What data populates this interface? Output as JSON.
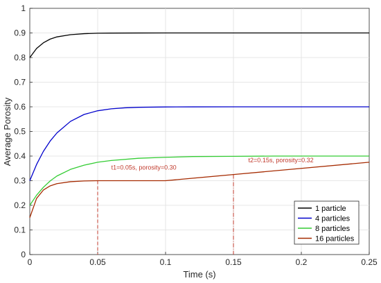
{
  "chart_data": {
    "type": "line",
    "xlabel": "Time (s)",
    "ylabel": "Average Porosity",
    "xlim": [
      0,
      0.25
    ],
    "ylim": [
      0,
      1
    ],
    "xticks": [
      "0",
      "0.05",
      "0.1",
      "0.15",
      "0.2",
      "0.25"
    ],
    "xtick_values": [
      0,
      0.05,
      0.1,
      0.15,
      0.2,
      0.25
    ],
    "yticks": [
      "0",
      "0.1",
      "0.2",
      "0.3",
      "0.4",
      "0.5",
      "0.6",
      "0.7",
      "0.8",
      "0.9",
      "1"
    ],
    "ytick_values": [
      0,
      0.1,
      0.2,
      0.3,
      0.4,
      0.5,
      0.6,
      0.7,
      0.8,
      0.9,
      1
    ],
    "grid": true,
    "legend_position": "bottom-right",
    "series": [
      {
        "name": "1 particle",
        "color": "#000000",
        "x": [
          0,
          0.005,
          0.01,
          0.015,
          0.02,
          0.03,
          0.04,
          0.05,
          0.06,
          0.08,
          0.1,
          0.15,
          0.2,
          0.25
        ],
        "y": [
          0.8,
          0.837,
          0.86,
          0.875,
          0.884,
          0.893,
          0.897,
          0.899,
          0.8995,
          0.8999,
          0.9,
          0.9,
          0.9,
          0.9
        ]
      },
      {
        "name": "4 particles",
        "color": "#0000cc",
        "x": [
          0,
          0.005,
          0.01,
          0.015,
          0.02,
          0.03,
          0.04,
          0.05,
          0.06,
          0.07,
          0.08,
          0.1,
          0.12,
          0.15,
          0.2,
          0.25
        ],
        "y": [
          0.3,
          0.366,
          0.419,
          0.461,
          0.494,
          0.541,
          0.569,
          0.584,
          0.592,
          0.596,
          0.598,
          0.5995,
          0.5999,
          0.6,
          0.6,
          0.6
        ]
      },
      {
        "name": "8 particles",
        "color": "#33cc33",
        "x": [
          0,
          0.005,
          0.01,
          0.015,
          0.02,
          0.03,
          0.04,
          0.05,
          0.06,
          0.08,
          0.1,
          0.12,
          0.15,
          0.18,
          0.2,
          0.25
        ],
        "y": [
          0.2,
          0.241,
          0.273,
          0.299,
          0.319,
          0.346,
          0.363,
          0.375,
          0.382,
          0.391,
          0.395,
          0.398,
          0.399,
          0.4,
          0.4,
          0.4
        ]
      },
      {
        "name": "16 particles",
        "color": "#a52a00",
        "x": [
          0,
          0.005,
          0.01,
          0.015,
          0.02,
          0.03,
          0.04,
          0.05,
          0.06,
          0.08,
          0.1,
          0.15,
          0.2,
          0.25
        ],
        "y": [
          0.15,
          0.228,
          0.262,
          0.279,
          0.288,
          0.296,
          0.299,
          0.3,
          0.3,
          0.3,
          0.3,
          0.325,
          0.35,
          0.375
        ]
      }
    ],
    "annotations": [
      {
        "text": "t1=0.05s, porosity=0.30",
        "x": 0.05,
        "y": 0.3,
        "label_x": 0.06,
        "label_y": 0.345
      },
      {
        "text": "t2=0.15s, porosity=0.32",
        "x": 0.15,
        "y": 0.325,
        "label_x": 0.161,
        "label_y": 0.375
      }
    ],
    "annotation_color": "#c0392b"
  }
}
